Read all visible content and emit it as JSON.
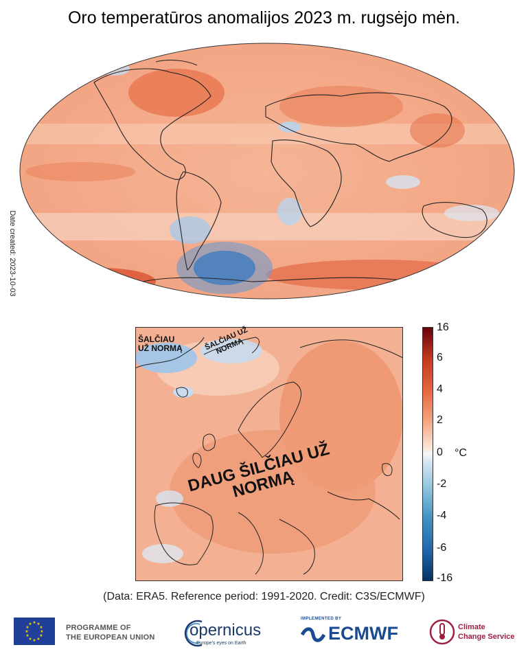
{
  "title": "Oro temperatūros anomalijos 2023 m. rugsėjo mėn.",
  "date_created": "Date created: 2023-10-03",
  "europe_labels": {
    "warm": "DAUG ŠILČIAU UŽ NORMĄ",
    "cold_west": "ŠALČIAU UŽ NORMĄ",
    "cold_east": "ŠALČIAU UŽ NORMĄ"
  },
  "colorbar": {
    "ticks": [
      "16",
      "6",
      "4",
      "2",
      "0",
      "-2",
      "-4",
      "-6",
      "-16"
    ],
    "unit": "°C"
  },
  "credit": "(Data: ERA5.  Reference period: 1991-2020.  Credit: C3S/ECMWF)",
  "logos": {
    "eu": [
      "PROGRAMME OF",
      "THE EUROPEAN UNION"
    ],
    "copernicus": "opernicus",
    "copernicus_tagline": "Europe's eyes on Earth",
    "ecmwf_pre": "IMPLEMENTED BY",
    "ecmwf": "ECMWF",
    "ccs": [
      "Climate",
      "Change Service"
    ]
  },
  "colors": {
    "warm_strong": "#d9603b",
    "warm": "#f2a380",
    "warm_light": "#f8cdb6",
    "neutral": "#f7f2ef",
    "cool": "#a9c8e6",
    "cold": "#2a62a8",
    "coastline": "#222222"
  }
}
